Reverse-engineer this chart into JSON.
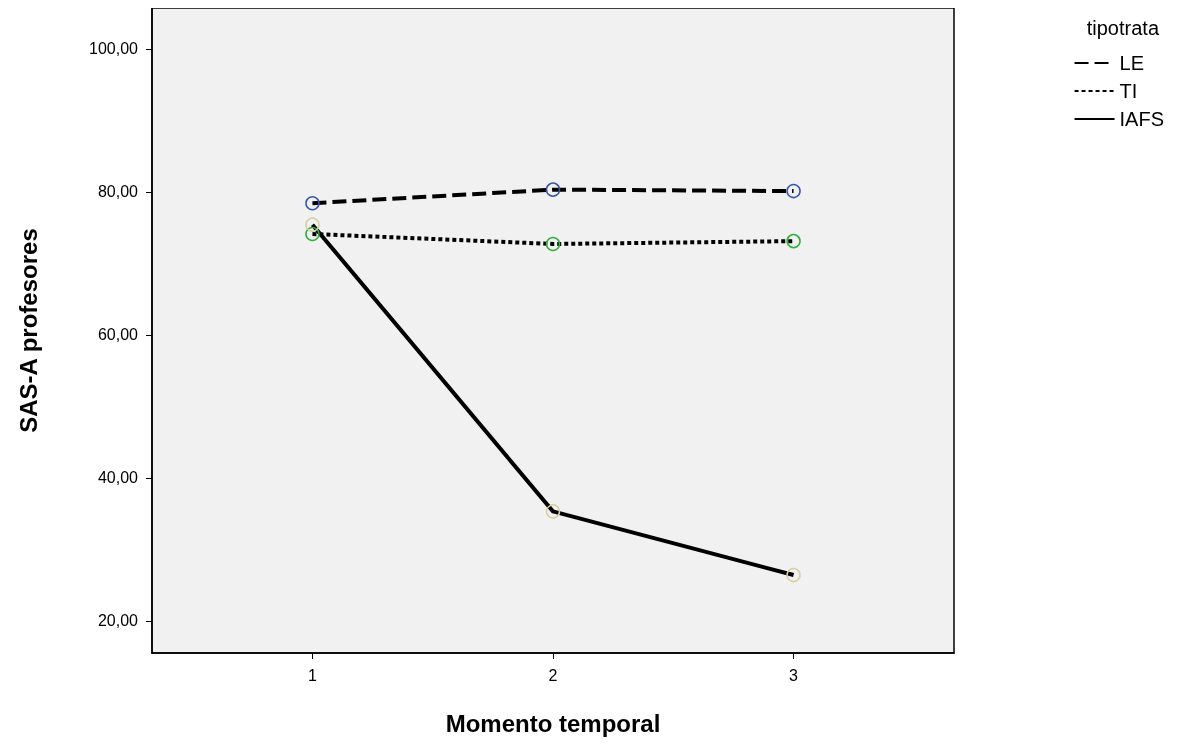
{
  "chart_data": {
    "type": "line",
    "xlabel": "Momento temporal",
    "ylabel": "SAS-A profesores",
    "legend_title": "tipotrata",
    "legend": "top right",
    "marker": "circle",
    "grid": false,
    "x": [
      1,
      2,
      3
    ],
    "xlim": [
      0.333,
      3.667
    ],
    "xticks": [
      1,
      2,
      3
    ],
    "ylim": [
      15.5,
      105.7
    ],
    "yticks": [
      {
        "value": 20,
        "label": "20,00"
      },
      {
        "value": 40,
        "label": "40,00"
      },
      {
        "value": 60,
        "label": "60,00"
      },
      {
        "value": 80,
        "label": "80,00"
      },
      {
        "value": 100,
        "label": "100,00"
      }
    ],
    "series": [
      {
        "name": "LE",
        "color": "#000000",
        "colors": [
          "#3a56a8",
          "#3a56a8",
          "#3a56a8"
        ],
        "line_style": "dashed",
        "values": [
          78.4,
          80.3,
          80.1
        ]
      },
      {
        "name": "TI",
        "color": "#000000",
        "colors": [
          "#2fae3a",
          "#2fae3a",
          "#2fae3a"
        ],
        "line_style": "dotted",
        "values": [
          74.1,
          72.7,
          73.1
        ]
      },
      {
        "name": "IAFS",
        "color": "#000000",
        "colors": [
          "#d6cfa0",
          "#d6cfa0",
          "#d6cfa0"
        ],
        "line_style": "solid",
        "values": [
          75.4,
          35.3,
          26.4
        ]
      }
    ]
  }
}
